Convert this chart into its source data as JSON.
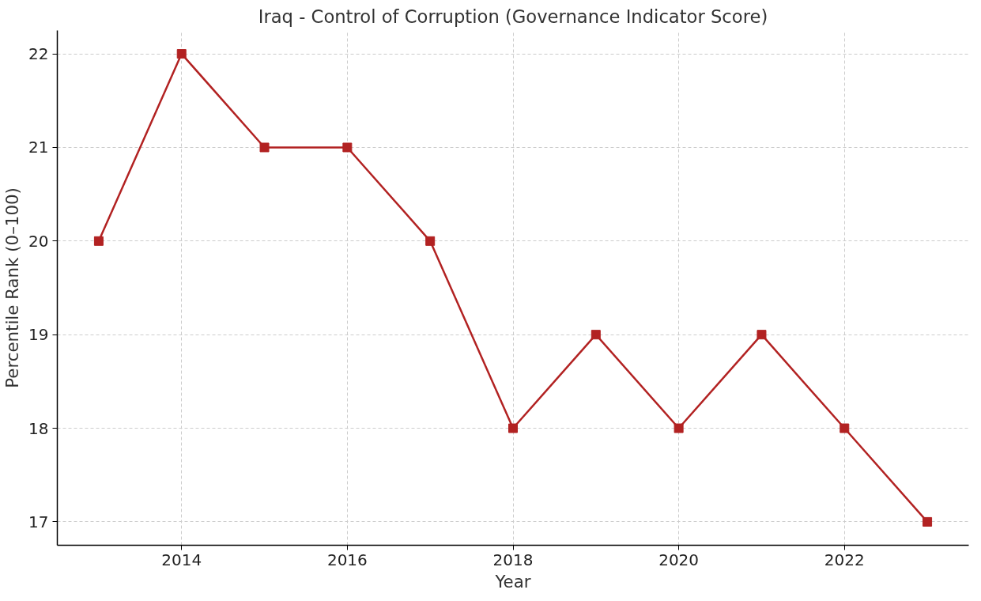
{
  "chart_data": {
    "type": "line",
    "title": "Iraq - Control of Corruption (Governance Indicator Score)",
    "xlabel": "Year",
    "ylabel": "Percentile Rank (0–100)",
    "x": [
      2013,
      2014,
      2015,
      2016,
      2017,
      2018,
      2019,
      2020,
      2021,
      2022,
      2023
    ],
    "series": [
      {
        "color": "#b22222",
        "values": [
          20,
          22,
          21,
          21,
          20,
          18,
          19,
          18,
          19,
          18,
          17
        ]
      }
    ],
    "xlim": [
      2012.5,
      2023.5
    ],
    "xticks": [
      2014,
      2016,
      2018,
      2020,
      2022
    ],
    "ylim": [
      16.75,
      22.25
    ],
    "yticks": [
      17,
      18,
      19,
      20,
      21,
      22
    ],
    "grid": true,
    "marker": "square",
    "line_style": "solid"
  }
}
